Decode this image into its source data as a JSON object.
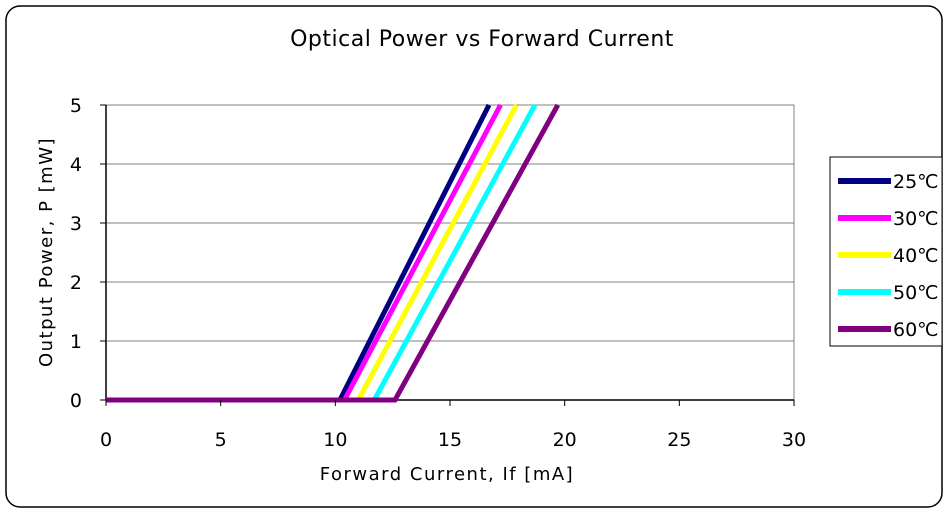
{
  "chart_data": {
    "type": "line",
    "title": "Optical Power vs Forward Current",
    "xlabel": "Forward Current, If [mA]",
    "ylabel": "Output Power, P [mW]",
    "xlim": [
      0,
      30
    ],
    "ylim": [
      0,
      5
    ],
    "x_ticks": [
      "0",
      "5",
      "10",
      "15",
      "20",
      "25",
      "30"
    ],
    "y_ticks": [
      "0",
      "1",
      "2",
      "3",
      "4",
      "5"
    ],
    "grid": "horizontal",
    "legend_position": "right",
    "series": [
      {
        "name": "25℃",
        "color": "#000080",
        "points": [
          [
            0,
            0
          ],
          [
            10.2,
            0
          ],
          [
            16.7,
            5
          ]
        ]
      },
      {
        "name": "30℃",
        "color": "#ff00ff",
        "points": [
          [
            0,
            0
          ],
          [
            10.4,
            0
          ],
          [
            17.2,
            5
          ]
        ]
      },
      {
        "name": "40℃",
        "color": "#ffff00",
        "points": [
          [
            0,
            0
          ],
          [
            11.0,
            0
          ],
          [
            17.9,
            5
          ]
        ]
      },
      {
        "name": "50℃",
        "color": "#00ffff",
        "points": [
          [
            0,
            0
          ],
          [
            11.7,
            0
          ],
          [
            18.7,
            5
          ]
        ]
      },
      {
        "name": "60℃",
        "color": "#800080",
        "points": [
          [
            0,
            0
          ],
          [
            12.6,
            0
          ],
          [
            19.7,
            5
          ]
        ]
      }
    ]
  }
}
